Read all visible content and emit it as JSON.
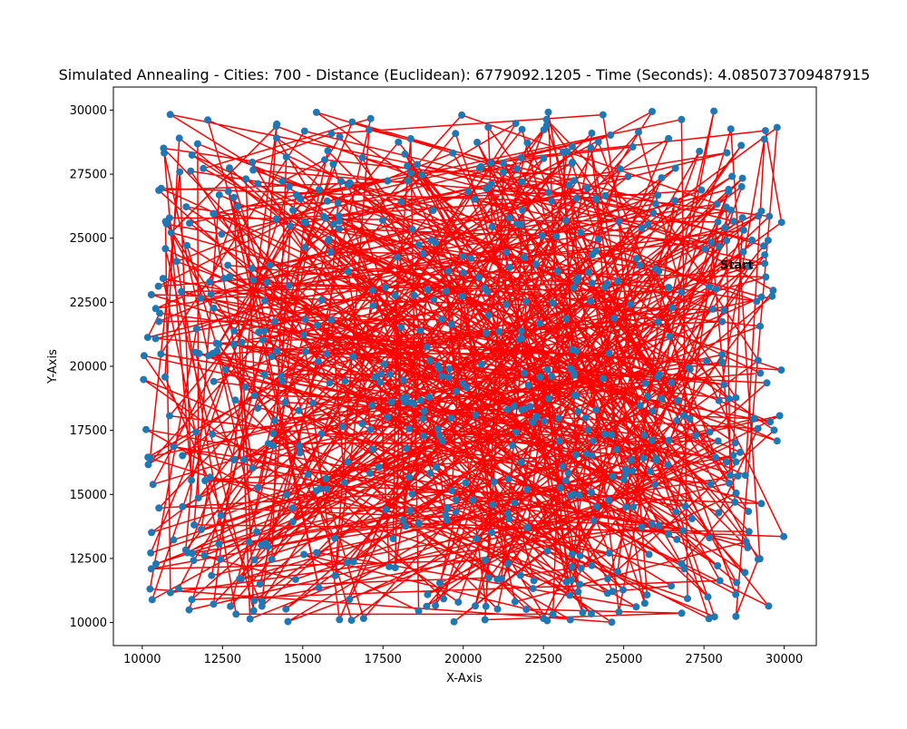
{
  "chart_data": {
    "type": "line",
    "title": "Simulated Annealing - Cities: 700 - Distance (Euclidean): 6779092.1205 - Time (Seconds): 4.085073709487915",
    "xlabel": "X-Axis",
    "ylabel": "Y-Axis",
    "xlim": [
      9100,
      31000
    ],
    "ylim": [
      9100,
      30900
    ],
    "xticks": [
      10000,
      12500,
      15000,
      17500,
      20000,
      22500,
      25000,
      27500,
      30000
    ],
    "yticks": [
      10000,
      12500,
      15000,
      17500,
      20000,
      22500,
      25000,
      27500,
      30000
    ],
    "xtick_labels": [
      "10000",
      "12500",
      "15000",
      "17500",
      "20000",
      "22500",
      "25000",
      "27500",
      "30000"
    ],
    "ytick_labels": [
      "10000",
      "12500",
      "15000",
      "17500",
      "20000",
      "22500",
      "25000",
      "27500",
      "30000"
    ],
    "grid": false,
    "annotation": {
      "text": "Start",
      "x": 28000,
      "y": 23800
    },
    "series": [
      {
        "type": "scatter",
        "color": "#1f77b4"
      },
      {
        "type": "line",
        "color": "#ff0000"
      }
    ],
    "num_cities": 700,
    "x_range": [
      10000,
      30000
    ],
    "y_range": [
      10000,
      30000
    ]
  }
}
